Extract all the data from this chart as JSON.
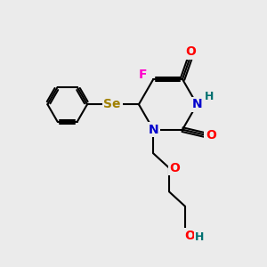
{
  "bg_color": "#ebebeb",
  "bond_color": "#000000",
  "bond_width": 1.5,
  "atom_colors": {
    "O": "#ff0000",
    "N": "#0000cc",
    "F": "#ff00cc",
    "Se": "#a08000",
    "H": "#007070",
    "C": "#000000"
  },
  "font_size": 10,
  "figsize": [
    3.0,
    3.0
  ],
  "dpi": 100
}
